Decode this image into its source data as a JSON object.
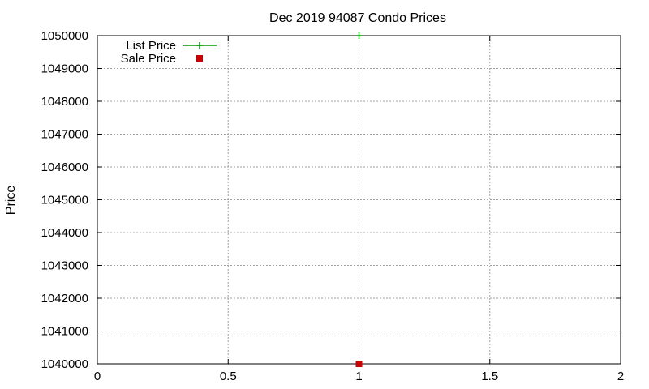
{
  "chart_data": {
    "type": "scatter",
    "title": "Dec 2019 94087 Condo Prices",
    "xlabel": "",
    "ylabel": "Price",
    "xlim": [
      0,
      2
    ],
    "ylim": [
      1040000,
      1050000
    ],
    "x_ticks": [
      0,
      0.5,
      1,
      1.5,
      2
    ],
    "x_tick_labels": [
      "0",
      "0.5",
      "1",
      "1.5",
      "2"
    ],
    "y_ticks": [
      1040000,
      1041000,
      1042000,
      1043000,
      1044000,
      1045000,
      1046000,
      1047000,
      1048000,
      1049000,
      1050000
    ],
    "y_tick_labels": [
      "1040000",
      "1041000",
      "1042000",
      "1043000",
      "1044000",
      "1045000",
      "1046000",
      "1047000",
      "1048000",
      "1049000",
      "1050000"
    ],
    "grid": true,
    "legend_position": "top-left",
    "series": [
      {
        "name": "List Price",
        "color": "#009900",
        "marker": "plus",
        "points": [
          {
            "x": 1,
            "y": 1050000
          }
        ]
      },
      {
        "name": "Sale Price",
        "color": "#cc0000",
        "marker": "square",
        "points": [
          {
            "x": 1,
            "y": 1040000
          }
        ]
      }
    ]
  }
}
